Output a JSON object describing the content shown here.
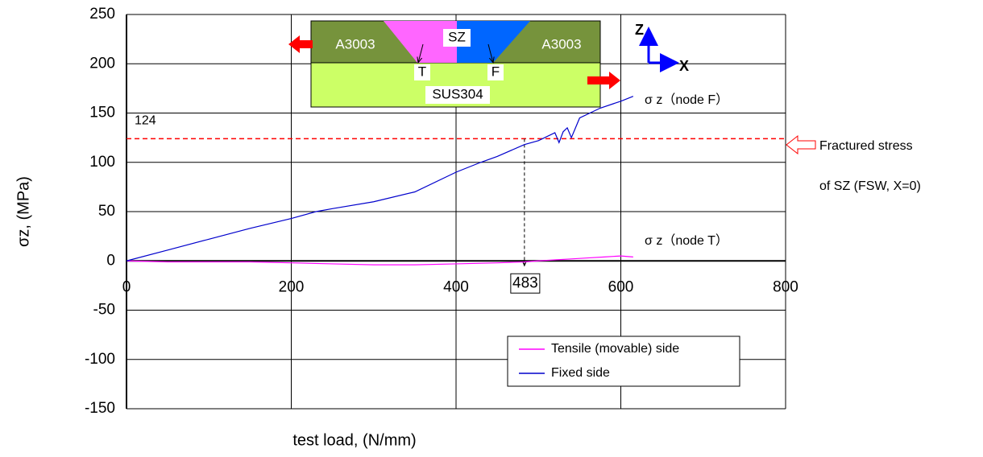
{
  "chart_data": {
    "type": "line",
    "x_label": "test load,  (N/mm)",
    "y_label": "σz,  (MPa)",
    "xlim": [
      0,
      800
    ],
    "xticks": [
      0,
      200,
      400,
      600,
      800
    ],
    "ylim": [
      -150,
      250
    ],
    "yticks": [
      -150,
      -100,
      -50,
      0,
      50,
      100,
      150,
      200,
      250
    ],
    "grid": true,
    "series": [
      {
        "name": "Tensile (movable) side",
        "color": "#ff00ff",
        "x": [
          0,
          50,
          100,
          150,
          200,
          250,
          300,
          350,
          400,
          450,
          483,
          500,
          520,
          540,
          560,
          580,
          600,
          615
        ],
        "values": [
          0,
          -1,
          -1,
          -1,
          -2,
          -3,
          -4,
          -4,
          -3,
          -2,
          -1,
          0,
          1,
          2,
          3,
          4,
          5,
          4
        ]
      },
      {
        "name": "Fixed side",
        "color": "#0000cc",
        "x": [
          0,
          50,
          100,
          150,
          200,
          230,
          250,
          300,
          350,
          400,
          430,
          450,
          483,
          500,
          520,
          525,
          530,
          535,
          540,
          550,
          575,
          600,
          615
        ],
        "values": [
          0,
          11,
          22,
          33,
          43,
          50,
          53,
          60,
          70,
          90,
          100,
          106,
          118,
          122,
          130,
          120,
          131,
          135,
          125,
          145,
          155,
          162,
          167
        ]
      }
    ],
    "legend_position": "lower right",
    "series_labels": [
      "σ z（node T）",
      "σ z（node F）"
    ],
    "fracture_stress": {
      "value": 124,
      "label": "124",
      "color": "#ff0000"
    },
    "fracture_load": 483,
    "fracture_note": [
      "Fractured stress",
      "of SZ (FSW, X=0)"
    ],
    "inset": {
      "left_plate": "A3003",
      "right_plate": "A3003",
      "stir_zone": "SZ",
      "node_t": "T",
      "node_f": "F",
      "base_plate": "SUS304",
      "axis_z": "Z",
      "axis_x": "X"
    }
  }
}
